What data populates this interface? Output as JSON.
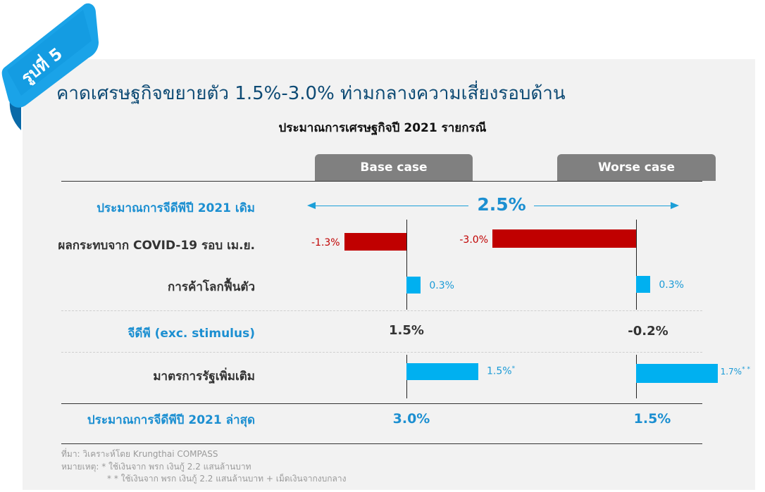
{
  "ribbon": {
    "label": "รูปที่ 5"
  },
  "title": "คาดเศรษฐกิจขยายตัว 1.5%-3.0% ท่ามกลางความเสี่ยงรอบด้าน",
  "chart_data": {
    "type": "bar",
    "title": "ประมาณการเศรษฐกิจปี 2021 รายกรณี",
    "scenarios": [
      "Base case",
      "Worse case"
    ],
    "original_forecast": {
      "label": "ประมาณการจีดีพีปี 2021 เดิม",
      "value_text": "2.5%",
      "value": 2.5
    },
    "contributions": [
      {
        "label": "ผลกระทบจาก COVID-19 รอบ เม.ย.",
        "values": [
          -1.3,
          -3.0
        ],
        "value_texts": [
          "-1.3%",
          "-3.0%"
        ],
        "colors": [
          "#c00000",
          "#c00000"
        ]
      },
      {
        "label": "การค้าโลกฟื้นตัว",
        "values": [
          0.3,
          0.3
        ],
        "value_texts": [
          "0.3%",
          "0.3%"
        ],
        "colors": [
          "#00b0f0",
          "#00b0f0"
        ]
      }
    ],
    "gdp_ex_stimulus": {
      "label": "จีดีพี (exc. stimulus)",
      "values": [
        1.5,
        -0.2
      ],
      "value_texts": [
        "1.5%",
        "-0.2%"
      ]
    },
    "stimulus": {
      "label": "มาตรการรัฐเพิ่มเติม",
      "values": [
        1.5,
        1.7
      ],
      "value_texts": [
        "1.5%",
        "1.7%"
      ],
      "markers": [
        "*",
        "* *"
      ],
      "colors": [
        "#00b0f0",
        "#00b0f0"
      ]
    },
    "latest_forecast": {
      "label": "ประมาณการจีดีพีปี 2021 ล่าสุด",
      "values": [
        3.0,
        1.5
      ],
      "value_texts": [
        "3.0%",
        "1.5%"
      ]
    }
  },
  "footnotes": {
    "source": "ที่มา: วิเคราะห์โดย Krungthai COMPASS",
    "note1": "หมายเหตุ: * ใช้เงินจาก พรก เงินกู้ 2.2 แสนล้านบาท",
    "note2": "* * ใช้เงินจาก พรก เงินกู้ 2.2 แสนล้านบาท + เม็ดเงินจากงบกลาง"
  }
}
